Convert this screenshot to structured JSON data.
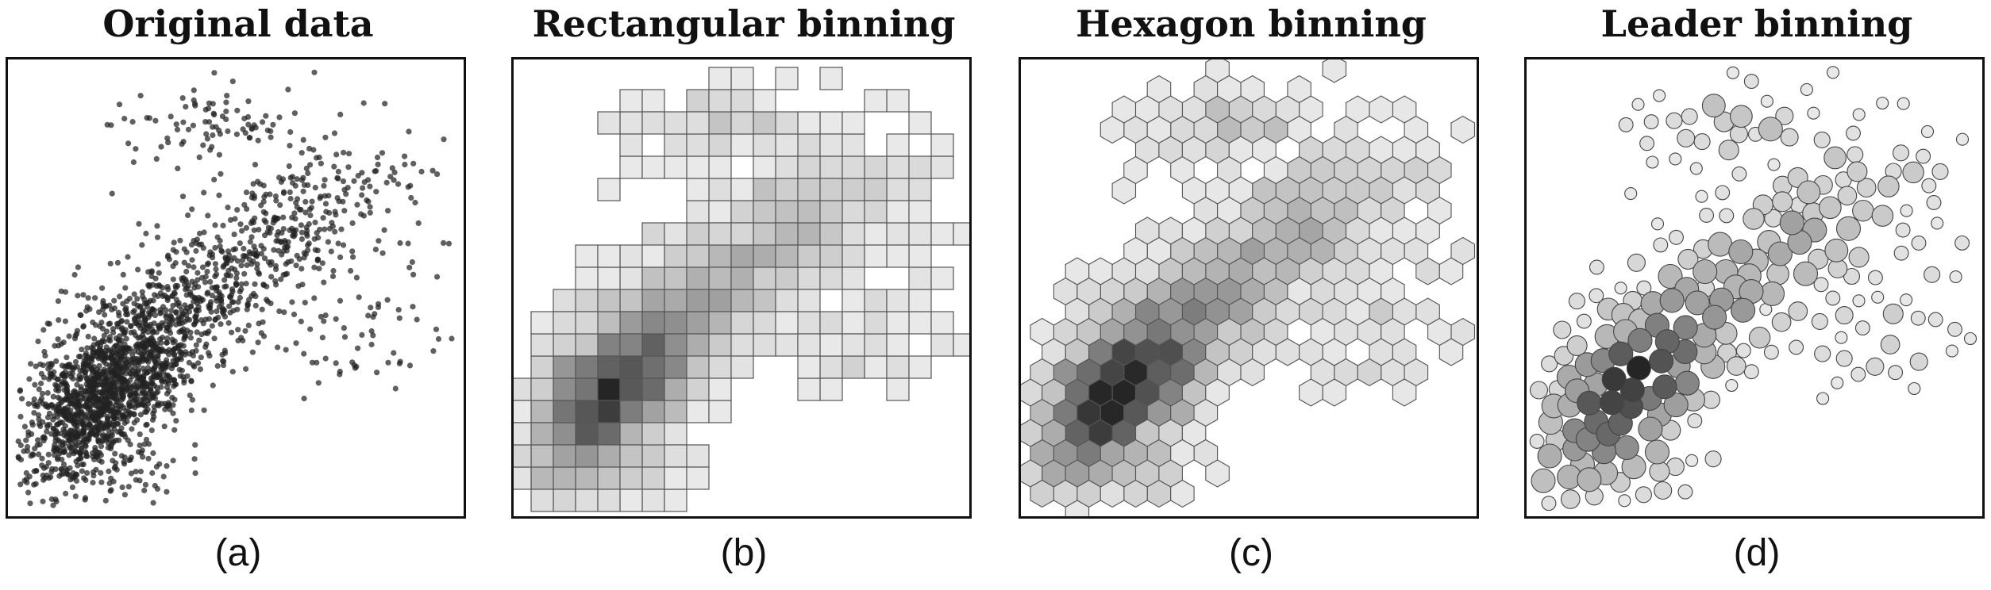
{
  "panels": [
    {
      "title": "Original data",
      "label": "(a)"
    },
    {
      "title": "Rectangular binning",
      "label": "(b)"
    },
    {
      "title": "Hexagon binning",
      "label": "(c)"
    },
    {
      "title": "Leader binning",
      "label": "(d)"
    }
  ]
}
